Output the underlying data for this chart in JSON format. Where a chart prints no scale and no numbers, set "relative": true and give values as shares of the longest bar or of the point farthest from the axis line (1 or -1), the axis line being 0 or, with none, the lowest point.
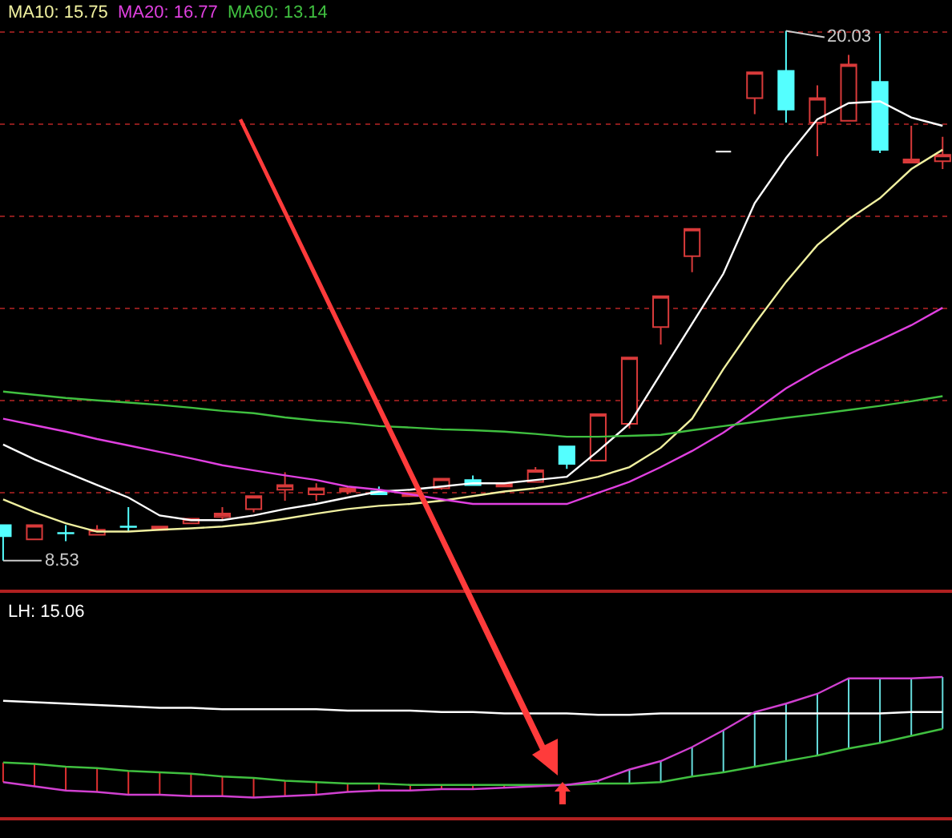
{
  "chart_data": [
    {
      "type": "candlestick",
      "categories": [
        null,
        null,
        null,
        null,
        null,
        null,
        null,
        null,
        null,
        null,
        null,
        null,
        null,
        null,
        null,
        null,
        null,
        null,
        null,
        null,
        null,
        null,
        null,
        null,
        null,
        null,
        null,
        null,
        null,
        null,
        null
      ],
      "ohlc": [
        [
          9.3,
          9.3,
          8.53,
          9.06
        ],
        [
          8.99,
          9.3,
          8.99,
          9.3
        ],
        [
          9.13,
          9.3,
          8.95,
          9.12
        ],
        [
          9.09,
          9.3,
          9.09,
          9.2
        ],
        [
          9.27,
          9.69,
          9.16,
          9.26
        ],
        [
          9.2,
          9.27,
          9.2,
          9.27
        ],
        [
          9.34,
          9.44,
          9.34,
          9.44
        ],
        [
          9.48,
          9.69,
          9.41,
          9.55
        ],
        [
          9.65,
          9.93,
          9.58,
          9.93
        ],
        [
          10.07,
          10.45,
          9.83,
          10.17
        ],
        [
          9.97,
          10.21,
          9.83,
          10.1
        ],
        [
          10.03,
          10.14,
          9.97,
          10.1
        ],
        [
          10.03,
          10.14,
          9.97,
          9.97
        ],
        [
          9.93,
          10.0,
          9.93,
          10.0
        ],
        [
          10.1,
          10.31,
          10.07,
          10.31
        ],
        [
          10.28,
          10.38,
          10.17,
          10.17
        ],
        [
          10.14,
          10.21,
          10.14,
          10.21
        ],
        [
          10.24,
          10.56,
          10.24,
          10.49
        ],
        [
          11.01,
          11.01,
          10.52,
          10.63
        ],
        [
          10.7,
          11.71,
          10.7,
          11.71
        ],
        [
          11.5,
          12.94,
          11.4,
          12.94
        ],
        [
          13.6,
          14.27,
          13.22,
          14.27
        ],
        [
          15.14,
          15.73,
          14.79,
          15.73
        ],
        [
          17.41,
          17.41,
          17.41,
          17.41
        ],
        [
          18.57,
          19.13,
          18.22,
          19.13
        ],
        [
          19.16,
          20.03,
          18.04,
          18.32
        ],
        [
          18.04,
          18.85,
          17.31,
          18.57
        ],
        [
          18.08,
          19.51,
          18.08,
          19.3
        ],
        [
          18.92,
          19.97,
          17.38,
          17.45
        ],
        [
          17.17,
          17.97,
          17.17,
          17.24
        ],
        [
          17.2,
          17.73,
          17.03,
          17.34
        ]
      ],
      "colors": [
        "#54ffff",
        "#d83a3a",
        "#54ffff",
        "#d83a3a",
        "#54ffff",
        "#d83a3a",
        "#d83a3a",
        "#d83a3a",
        "#d83a3a",
        "#d83a3a",
        "#d83a3a",
        "#d83a3a",
        "#54ffff",
        "#d83a3a",
        "#d83a3a",
        "#54ffff",
        "#d83a3a",
        "#d83a3a",
        "#54ffff",
        "#d83a3a",
        "#d83a3a",
        "#d83a3a",
        "#d83a3a",
        "#ffffff",
        "#d83a3a",
        "#54ffff",
        "#d83a3a",
        "#d83a3a",
        "#54ffff",
        "#d83a3a",
        "#d83a3a"
      ],
      "series": [
        {
          "type": "line",
          "color": "#ffffff",
          "values": [
            11.05,
            10.73,
            10.45,
            10.17,
            9.9,
            9.51,
            9.41,
            9.41,
            9.51,
            9.65,
            9.76,
            9.9,
            10.03,
            10.07,
            10.14,
            10.21,
            10.21,
            10.28,
            10.35,
            10.91,
            11.5,
            12.59,
            13.67,
            14.76,
            16.29,
            17.27,
            18.11,
            18.46,
            18.5,
            18.15,
            17.97
          ]
        },
        {
          "type": "line",
          "name": "MA10: 15.75",
          "color": "#f0f0a0",
          "values": [
            9.86,
            9.58,
            9.34,
            9.16,
            9.16,
            9.2,
            9.23,
            9.27,
            9.34,
            9.44,
            9.55,
            9.65,
            9.72,
            9.76,
            9.83,
            9.93,
            10.03,
            10.1,
            10.21,
            10.35,
            10.56,
            10.98,
            11.61,
            12.69,
            13.67,
            14.58,
            15.38,
            15.94,
            16.4,
            17.03,
            17.45
          ]
        },
        {
          "type": "line",
          "name": "MA20: 16.77",
          "color": "#e040e0",
          "values": [
            11.61,
            11.47,
            11.33,
            11.17,
            11.03,
            10.89,
            10.75,
            10.6,
            10.49,
            10.38,
            10.28,
            10.14,
            10.07,
            9.97,
            9.86,
            9.76,
            9.76,
            9.76,
            9.76,
            10.0,
            10.24,
            10.56,
            10.91,
            11.31,
            11.78,
            12.27,
            12.66,
            13.01,
            13.32,
            13.64,
            14.02
          ]
        },
        {
          "type": "line",
          "name": "MA60: 13.14",
          "color": "#40c040",
          "values": [
            12.2,
            12.13,
            12.06,
            12.01,
            11.96,
            11.91,
            11.85,
            11.78,
            11.73,
            11.64,
            11.57,
            11.52,
            11.45,
            11.42,
            11.38,
            11.36,
            11.33,
            11.28,
            11.22,
            11.22,
            11.24,
            11.26,
            11.36,
            11.45,
            11.54,
            11.63,
            11.71,
            11.8,
            11.89,
            11.99,
            12.1
          ]
        }
      ],
      "ylim": [
        7.9,
        20.7
      ],
      "yticks": [
        {
          "value": 10,
          "label": null
        },
        {
          "value": 12,
          "label": null
        },
        {
          "value": 14,
          "label": null
        },
        {
          "value": 16,
          "label": null
        },
        {
          "value": 18,
          "label": null
        },
        {
          "value": 20,
          "label": null
        }
      ],
      "grid": "y",
      "legend": "top left",
      "annotations": [
        "20.03",
        "8.53"
      ]
    },
    {
      "type": "line",
      "relative": true,
      "categories": [
        null,
        null,
        null,
        null,
        null,
        null,
        null,
        null,
        null,
        null,
        null,
        null,
        null,
        null,
        null,
        null,
        null,
        null,
        null,
        null,
        null,
        null,
        null,
        null,
        null,
        null,
        null,
        null,
        null,
        null,
        null
      ],
      "series": [
        {
          "type": "line",
          "color": "#ffffff",
          "values": [
            0.83,
            0.82,
            0.81,
            0.8,
            0.79,
            0.78,
            0.78,
            0.77,
            0.77,
            0.77,
            0.77,
            0.76,
            0.76,
            0.76,
            0.75,
            0.75,
            0.74,
            0.74,
            0.74,
            0.73,
            0.73,
            0.74,
            0.74,
            0.74,
            0.74,
            0.74,
            0.74,
            0.74,
            0.74,
            0.75,
            0.75
          ]
        },
        {
          "type": "line",
          "color": "#40c040",
          "values": [
            0.39,
            0.38,
            0.36,
            0.35,
            0.33,
            0.32,
            0.31,
            0.29,
            0.28,
            0.26,
            0.25,
            0.24,
            0.24,
            0.23,
            0.23,
            0.23,
            0.23,
            0.23,
            0.23,
            0.24,
            0.24,
            0.25,
            0.29,
            0.32,
            0.36,
            0.4,
            0.44,
            0.49,
            0.53,
            0.58,
            0.63
          ]
        },
        {
          "type": "line",
          "color": "#d040d0",
          "colors": [
            "#e03030",
            "#e03030",
            "#e03030",
            "#e03030",
            "#e03030",
            "#e03030",
            "#e03030",
            "#e03030",
            "#e03030",
            "#e03030",
            "#e03030",
            "#e03030",
            "#e03030",
            "#e03030",
            "#e03030",
            "#e03030",
            "#e03030",
            "#e03030",
            "#66dddd",
            "#66dddd",
            "#66dddd",
            "#66dddd",
            "#66dddd",
            "#66dddd",
            "#66dddd",
            "#66dddd",
            "#66dddd",
            "#66dddd",
            "#66dddd",
            "#66dddd",
            "#66dddd"
          ],
          "values": [
            0.25,
            0.22,
            0.19,
            0.18,
            0.16,
            0.16,
            0.15,
            0.15,
            0.14,
            0.15,
            0.16,
            0.18,
            0.19,
            0.19,
            0.2,
            0.2,
            0.21,
            0.22,
            0.23,
            0.26,
            0.34,
            0.4,
            0.5,
            0.62,
            0.75,
            0.81,
            0.88,
            0.99,
            0.99,
            0.99,
            1
          ]
        }
      ],
      "annotations": [
        "LH: 15.06"
      ]
    }
  ]
}
